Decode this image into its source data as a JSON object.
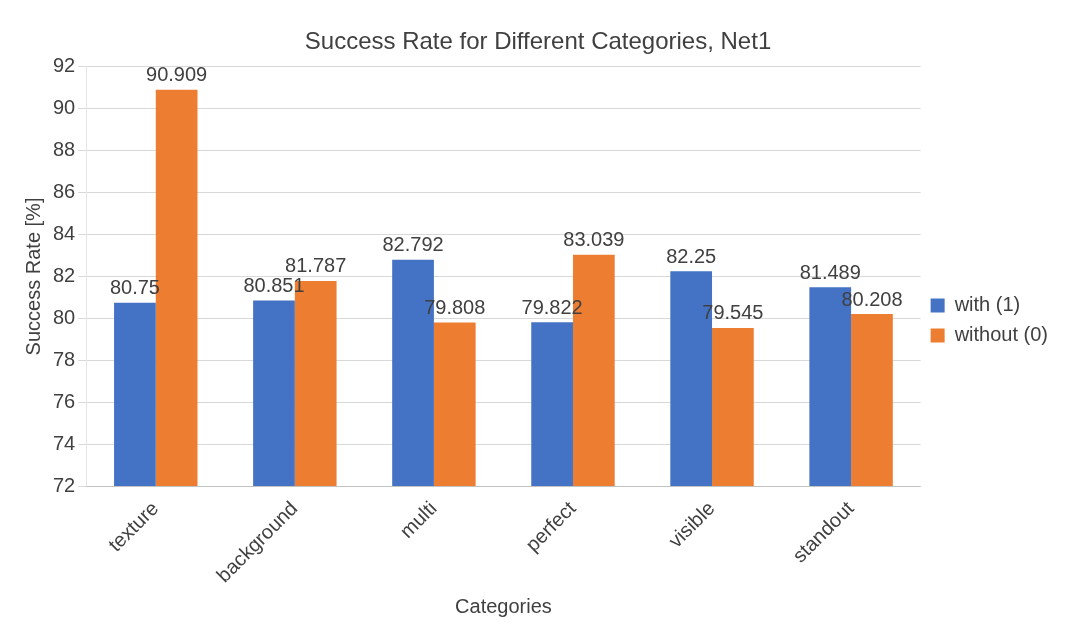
{
  "chart_data": {
    "type": "bar",
    "title": "Success Rate for Different Categories, Net1",
    "xlabel": "Categories",
    "ylabel": "Success Rate [%]",
    "categories": [
      "texture",
      "background",
      "multi",
      "perfect",
      "visible",
      "standout"
    ],
    "series": [
      {
        "name": "with (1)",
        "color": "#4472c4",
        "values": [
          80.75,
          80.851,
          82.792,
          79.822,
          82.25,
          81.489
        ]
      },
      {
        "name": "without (0)",
        "color": "#ed7d31",
        "values": [
          90.909,
          81.787,
          79.808,
          83.039,
          79.545,
          80.208
        ]
      }
    ],
    "ylim": [
      72,
      92
    ],
    "yticks": [
      72,
      74,
      76,
      78,
      80,
      82,
      84,
      86,
      88,
      90,
      92
    ],
    "grid": "y",
    "legend": "right",
    "data_labels": true
  }
}
